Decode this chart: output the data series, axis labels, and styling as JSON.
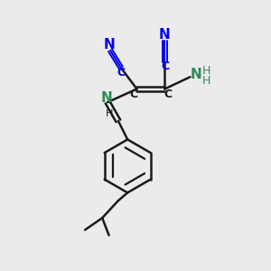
{
  "bg_color": "#ebebeb",
  "bond_color": "#1a1a1a",
  "cn_color": "#0000ee",
  "n_color": "#2e8b57",
  "line_width": 1.8,
  "fig_w": 3.0,
  "fig_h": 3.0,
  "dpi": 100,
  "xlim": [
    0,
    10
  ],
  "ylim": [
    0,
    10
  ]
}
